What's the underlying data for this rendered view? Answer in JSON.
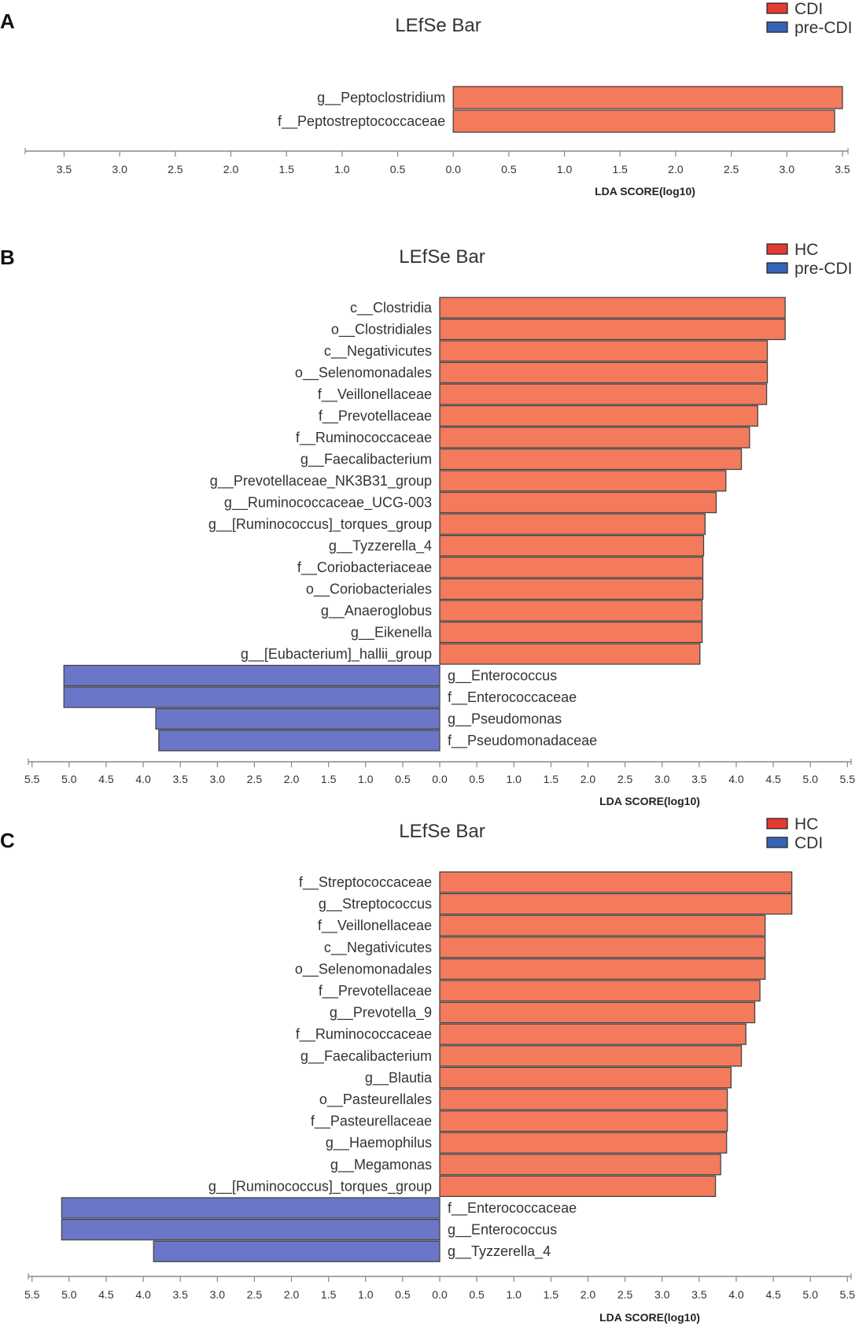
{
  "colors": {
    "group1": "#f47a5c",
    "group2": "#6b76c8",
    "legend_group1": "#e33a32",
    "legend_group2": "#3563b6",
    "bar_stroke": "#444444",
    "axis": "#888888",
    "text": "#333333"
  },
  "chart_data": [
    {
      "panel": "A",
      "type": "bar",
      "orientation": "horizontal",
      "title": "LEfSe Bar",
      "xlabel": "LDA SCORE(log10)",
      "legend": [
        "CDI",
        "pre-CDI"
      ],
      "legend_position": "top-right",
      "xlim": [
        -3.85,
        3.55
      ],
      "ticks": [
        -3.5,
        -3.0,
        -2.5,
        -2.0,
        -1.5,
        -1.0,
        -0.5,
        0.0,
        0.5,
        1.0,
        1.5,
        2.0,
        2.5,
        3.0,
        3.5
      ],
      "tick_labels": [
        "3.5",
        "3.0",
        "2.5",
        "2.0",
        "1.5",
        "1.0",
        "0.5",
        "0.0",
        "0.5",
        "1.0",
        "1.5",
        "2.0",
        "2.5",
        "3.0",
        "3.5"
      ],
      "bars": [
        {
          "label": "g__Peptoclostridium",
          "value": 3.5,
          "group": "CDI"
        },
        {
          "label": "f__Peptostreptococcaceae",
          "value": 3.43,
          "group": "CDI"
        }
      ]
    },
    {
      "panel": "B",
      "type": "bar",
      "orientation": "horizontal",
      "title": "LEfSe Bar",
      "xlabel": "LDA SCORE(log10)",
      "legend": [
        "HC",
        "pre-CDI"
      ],
      "legend_position": "top-right",
      "xlim": [
        -5.55,
        5.55
      ],
      "ticks": [
        -5.5,
        -5.0,
        -4.5,
        -4.0,
        -3.5,
        -3.0,
        -2.5,
        -2.0,
        -1.5,
        -1.0,
        -0.5,
        0.0,
        0.5,
        1.0,
        1.5,
        2.0,
        2.5,
        3.0,
        3.5,
        4.0,
        4.5,
        5.0,
        5.5
      ],
      "tick_labels": [
        "5.5",
        "5.0",
        "4.5",
        "4.0",
        "3.5",
        "3.0",
        "2.5",
        "2.0",
        "1.5",
        "1.0",
        "0.5",
        "0.0",
        "0.5",
        "1.0",
        "1.5",
        "2.0",
        "2.5",
        "3.0",
        "3.5",
        "4.0",
        "4.5",
        "5.0",
        "5.5"
      ],
      "bars": [
        {
          "label": "c__Clostridia",
          "value": 4.66,
          "group": "HC"
        },
        {
          "label": "o__Clostridiales",
          "value": 4.66,
          "group": "HC"
        },
        {
          "label": "c__Negativicutes",
          "value": 4.42,
          "group": "HC"
        },
        {
          "label": "o__Selenomonadales",
          "value": 4.42,
          "group": "HC"
        },
        {
          "label": "f__Veillonellaceae",
          "value": 4.41,
          "group": "HC"
        },
        {
          "label": "f__Prevotellaceae",
          "value": 4.29,
          "group": "HC"
        },
        {
          "label": "f__Ruminococcaceae",
          "value": 4.18,
          "group": "HC"
        },
        {
          "label": "g__Faecalibacterium",
          "value": 4.07,
          "group": "HC"
        },
        {
          "label": "g__Prevotellaceae_NK3B31_group",
          "value": 3.86,
          "group": "HC"
        },
        {
          "label": "g__Ruminococcaceae_UCG-003",
          "value": 3.73,
          "group": "HC"
        },
        {
          "label": "g__[Ruminococcus]_torques_group",
          "value": 3.58,
          "group": "HC"
        },
        {
          "label": "g__Tyzzerella_4",
          "value": 3.56,
          "group": "HC"
        },
        {
          "label": "f__Coriobacteriaceae",
          "value": 3.55,
          "group": "HC"
        },
        {
          "label": "o__Coriobacteriales",
          "value": 3.55,
          "group": "HC"
        },
        {
          "label": "g__Anaeroglobus",
          "value": 3.54,
          "group": "HC"
        },
        {
          "label": "g__Eikenella",
          "value": 3.54,
          "group": "HC"
        },
        {
          "label": "g__[Eubacterium]_hallii_group",
          "value": 3.51,
          "group": "HC"
        },
        {
          "label": "g__Enterococcus",
          "value": -5.07,
          "group": "pre-CDI"
        },
        {
          "label": "f__Enterococcaceae",
          "value": -5.07,
          "group": "pre-CDI"
        },
        {
          "label": "g__Pseudomonas",
          "value": -3.83,
          "group": "pre-CDI"
        },
        {
          "label": "f__Pseudomonadaceae",
          "value": -3.79,
          "group": "pre-CDI"
        }
      ]
    },
    {
      "panel": "C",
      "type": "bar",
      "orientation": "horizontal",
      "title": "LEfSe Bar",
      "xlabel": "LDA SCORE(log10)",
      "legend": [
        "HC",
        "CDI"
      ],
      "legend_position": "top-right",
      "xlim": [
        -5.55,
        5.55
      ],
      "ticks": [
        -5.5,
        -5.0,
        -4.5,
        -4.0,
        -3.5,
        -3.0,
        -2.5,
        -2.0,
        -1.5,
        -1.0,
        -0.5,
        0.0,
        0.5,
        1.0,
        1.5,
        2.0,
        2.5,
        3.0,
        3.5,
        4.0,
        4.5,
        5.0,
        5.5
      ],
      "tick_labels": [
        "5.5",
        "5.0",
        "4.5",
        "4.0",
        "3.5",
        "3.0",
        "2.5",
        "2.0",
        "1.5",
        "1.0",
        "0.5",
        "0.0",
        "0.5",
        "1.0",
        "1.5",
        "2.0",
        "2.5",
        "3.0",
        "3.5",
        "4.0",
        "4.5",
        "5.0",
        "5.5"
      ],
      "bars": [
        {
          "label": "f__Streptococcaceae",
          "value": 4.75,
          "group": "HC"
        },
        {
          "label": "g__Streptococcus",
          "value": 4.75,
          "group": "HC"
        },
        {
          "label": "f__Veillonellaceae",
          "value": 4.39,
          "group": "HC"
        },
        {
          "label": "c__Negativicutes",
          "value": 4.39,
          "group": "HC"
        },
        {
          "label": "o__Selenomonadales",
          "value": 4.39,
          "group": "HC"
        },
        {
          "label": "f__Prevotellaceae",
          "value": 4.32,
          "group": "HC"
        },
        {
          "label": "g__Prevotella_9",
          "value": 4.25,
          "group": "HC"
        },
        {
          "label": "f__Ruminococcaceae",
          "value": 4.13,
          "group": "HC"
        },
        {
          "label": "g__Faecalibacterium",
          "value": 4.07,
          "group": "HC"
        },
        {
          "label": "g__Blautia",
          "value": 3.93,
          "group": "HC"
        },
        {
          "label": "o__Pasteurellales",
          "value": 3.88,
          "group": "HC"
        },
        {
          "label": "f__Pasteurellaceae",
          "value": 3.88,
          "group": "HC"
        },
        {
          "label": "g__Haemophilus",
          "value": 3.87,
          "group": "HC"
        },
        {
          "label": "g__Megamonas",
          "value": 3.79,
          "group": "HC"
        },
        {
          "label": "g__[Ruminococcus]_torques_group",
          "value": 3.72,
          "group": "HC"
        },
        {
          "label": "f__Enterococcaceae",
          "value": -5.1,
          "group": "CDI"
        },
        {
          "label": "g__Enterococcus",
          "value": -5.1,
          "group": "CDI"
        },
        {
          "label": "g__Tyzzerella_4",
          "value": -3.86,
          "group": "CDI"
        }
      ]
    }
  ]
}
